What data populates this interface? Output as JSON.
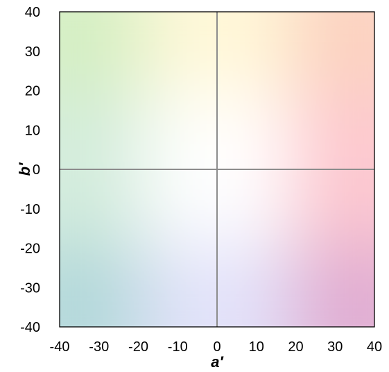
{
  "chart_data": {
    "type": "scatter",
    "title": "",
    "xlabel": "a′",
    "ylabel": "b′",
    "xlim": [
      -40,
      40
    ],
    "ylim": [
      -40,
      40
    ],
    "x_ticks": [
      -40,
      -30,
      -20,
      -10,
      0,
      10,
      20,
      30,
      40
    ],
    "y_ticks": [
      -40,
      -30,
      -20,
      -10,
      0,
      10,
      20,
      30,
      40
    ],
    "x_tick_labels": [
      "-40",
      "-30",
      "-20",
      "-10",
      "0",
      "10",
      "20",
      "30",
      "40"
    ],
    "y_tick_labels": [
      "-40",
      "-30",
      "-20",
      "-10",
      "0",
      "10",
      "20",
      "30",
      "40"
    ],
    "grid": false,
    "series": [],
    "background": "a′/b′ color-space gradient",
    "colors": {
      "top_left": "#d4efc2",
      "top_right": "#fcd2c0",
      "bottom_left": "#b2d8da",
      "bottom_right": "#e0acd2",
      "center": "#ffffff",
      "top": "#fff8d8",
      "bottom": "#e2e2fa",
      "left": "#d3ecdc",
      "right": "#fdc7cf",
      "zero_lines": "#8c8c8c",
      "frame": "#000000"
    }
  }
}
